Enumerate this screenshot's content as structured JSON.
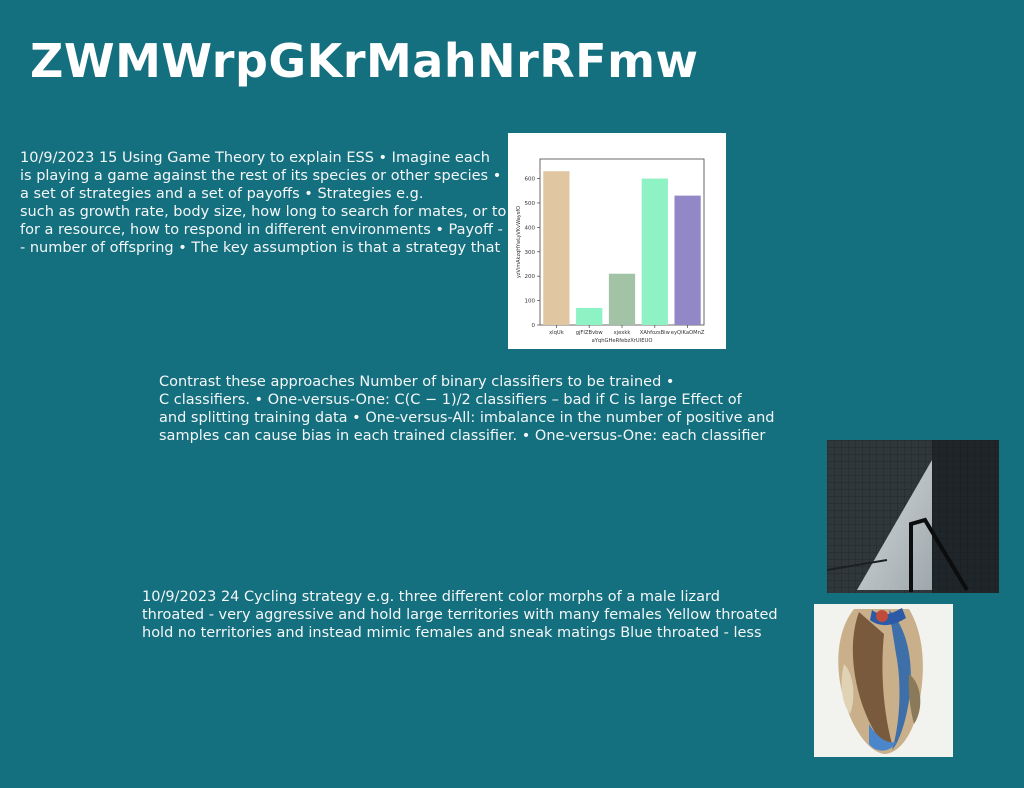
{
  "page": {
    "title": "ZWMWrpGKrMahNrRFmw"
  },
  "text_blocks": {
    "block1": [
      "10/9/2023 15 Using Game Theory to explain ESS • Imagine each",
      "is playing a game against the rest of its species or other species •",
      "a set of strategies and a set of payoffs • Strategies e.g.",
      "such as growth rate, body size, how long to search for mates, or to",
      "for a resource, how to respond in different environments • Payoff -",
      "- number of offspring • The key assumption is that a strategy that"
    ],
    "block2": [
      "Contrast these approaches Number of binary classifiers to be trained •",
      "C classifiers. • One-versus-One: C(C − 1)/2 classifiers – bad if C is large Effect of",
      "and splitting training data • One-versus-All: imbalance in the number of positive and",
      "samples can cause bias in each trained classifier. • One-versus-One: each classifier"
    ],
    "block3": [
      "10/9/2023 24 Cycling strategy e.g. three different color morphs of a male lizard",
      "throated - very aggressive and hold large territories with many females Yellow throated",
      "hold no territories and instead mimic females and sneak matings Blue throated - less"
    ]
  },
  "chart_data": {
    "type": "bar",
    "categories": [
      "xlqUk",
      "gjFIZBvbw",
      "xjexkk",
      "XAhfozsBiw",
      "eyQlKaOMnZ"
    ],
    "values": [
      630,
      70,
      210,
      600,
      530
    ],
    "colors": [
      "#e0c6a1",
      "#8df2c4",
      "#a3c3a6",
      "#8ff2c4",
      "#9288c8"
    ],
    "xlabel": "aYqhGHeRfebzXrUIEUO",
    "ylabel": "yzVimAkzqHYwLyVKvWaysfO",
    "ylim": [
      0,
      680
    ],
    "yticks": [
      0,
      100,
      200,
      300,
      400,
      500,
      600
    ],
    "grid": false
  },
  "images": {
    "photo1": "dark architectural photo with stair railing and light shaft",
    "photo2": "colorful collage artwork of draped figures"
  }
}
